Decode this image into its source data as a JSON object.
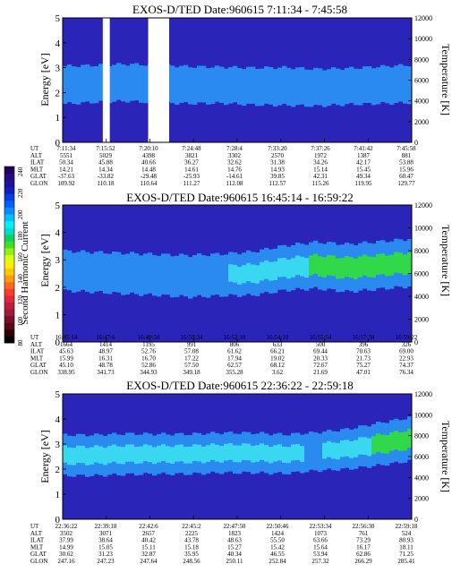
{
  "figure": {
    "colorbar": {
      "label": "Second Harmonic Current",
      "ticks": [
        "240",
        "220",
        "200",
        "180",
        "160",
        "140",
        "120",
        "100",
        "80"
      ],
      "colors": [
        "#000000",
        "#330000",
        "#5a0a14",
        "#7a0f2a",
        "#a01a3a",
        "#c01e3c",
        "#e0283c",
        "#ff3a2a",
        "#ff6a1a",
        "#ff9a10",
        "#ffc800",
        "#ffee00",
        "#d8ff10",
        "#90f010",
        "#40e020",
        "#10d060",
        "#00e0c8",
        "#00f0ff",
        "#00c0ff",
        "#0090ff",
        "#0060ff",
        "#0040e0",
        "#1020c0",
        "#2010a0",
        "#2a0a80",
        "#200060"
      ]
    },
    "colors": {
      "background": "#2b24b8",
      "band_blue": "#2a8af0",
      "band_cyan": "#3ad8f0",
      "band_green": "#30d84a",
      "gap": "#ffffff"
    }
  },
  "chart_data": [
    {
      "type": "heatmap",
      "title": "EXOS-D/TED   Date:960615  7:11:34 - 7:45:58",
      "ylabel": "Energy [eV]",
      "ylabel_right": "Temperature [K]",
      "ylim": [
        0,
        5
      ],
      "yticks": [
        "0",
        "1",
        "2",
        "3",
        "4",
        "5"
      ],
      "ylim_right": [
        0,
        12000
      ],
      "yticks_right": [
        "0",
        "2000",
        "4000",
        "6000",
        "8000",
        "10000",
        "12000"
      ],
      "data_gaps": [
        [
          0.115,
          0.135
        ],
        [
          0.245,
          0.305
        ]
      ],
      "band_profile": [
        2.3,
        2.35,
        2.4,
        2.35,
        2.3,
        2.3,
        2.25,
        2.25,
        2.2,
        2.25,
        2.3,
        2.35
      ],
      "band_intensity": [
        0.6,
        0.55,
        0.55,
        0.6,
        0.55,
        0.5,
        0.55,
        0.6,
        0.55,
        0.5,
        0.55,
        0.6
      ],
      "table": {
        "labels": [
          "UT",
          "ALT",
          "ILAT",
          "MLT",
          "GLAT",
          "GLON"
        ],
        "columns": [
          [
            "7:11:34",
            "5551",
            "50.34",
            "14.21",
            "-37.63",
            "109.92"
          ],
          [
            "7:15:52",
            "5029",
            "45.88",
            "14.34",
            "-33.82",
            "110.18"
          ],
          [
            "7:20:10",
            "4398",
            "40.66",
            "14.48",
            "-29.48",
            "110.64"
          ],
          [
            "7:24:48",
            "3821",
            "36.27",
            "14.61",
            "-25.93",
            "111.27"
          ],
          [
            "7:28:4",
            "3302",
            "32.62",
            "14.76",
            "-14.61",
            "112.08"
          ],
          [
            "7:33:20",
            "2570",
            "31.38",
            "14.93",
            "39.85",
            "112.57"
          ],
          [
            "7:37:26",
            "1972",
            "34.26",
            "15.14",
            "42.31",
            "115.26"
          ],
          [
            "7:41:42",
            "1387",
            "42.17",
            "15.45",
            "49.34",
            "119.95"
          ],
          [
            "7:45:58",
            "881",
            "53.88",
            "15.96",
            "60.47",
            "129.77"
          ]
        ]
      }
    },
    {
      "type": "heatmap",
      "title": "EXOS-D/TED   Date:960615  16:45:14 - 16:59:22",
      "ylabel": "Energy [eV]",
      "ylabel_right": "Temperature [K]",
      "ylim": [
        0,
        5
      ],
      "yticks": [
        "0",
        "1",
        "2",
        "3",
        "4",
        "5"
      ],
      "ylim_right": [
        0,
        12000
      ],
      "yticks_right": [
        "0",
        "2000",
        "4000",
        "6000",
        "8000",
        "10000",
        "12000"
      ],
      "data_gaps": [],
      "band_profile": [
        2.6,
        2.55,
        2.5,
        2.45,
        2.4,
        2.45,
        2.5,
        2.7,
        2.8,
        2.7,
        2.8,
        2.9
      ],
      "band_intensity": [
        0.5,
        0.5,
        0.55,
        0.55,
        0.6,
        0.6,
        0.7,
        0.75,
        0.85,
        0.9,
        0.9,
        0.9
      ],
      "table": {
        "labels": [
          "UT",
          "ALT",
          "ILAT",
          "MLT",
          "GLAT",
          "GLON"
        ],
        "columns": [
          [
            "16:45:14",
            "1664",
            "45.63",
            "15.99",
            "45.10",
            "338.95"
          ],
          [
            "16:47:6",
            "1414",
            "48.97",
            "16.31",
            "48.78",
            "341.73"
          ],
          [
            "16:48:50",
            "1195",
            "52.76",
            "16.70",
            "52.86",
            "344.93"
          ],
          [
            "16:50:34",
            "991",
            "57.08",
            "17.22",
            "57.50",
            "349.18"
          ],
          [
            "16:52:18",
            "806",
            "61.62",
            "17.94",
            "62.57",
            "355.28"
          ],
          [
            "16:54:10",
            "633",
            "66.21",
            "19.02",
            "68.12",
            "3.62"
          ],
          [
            "16:55:54",
            "500",
            "69.44",
            "20.33",
            "72.67",
            "21.69"
          ],
          [
            "16:57:38",
            "396",
            "70.63",
            "21.73",
            "75.27",
            "47.01"
          ],
          [
            "16:59:22",
            "326",
            "69.00",
            "22.93",
            "74.37",
            "76.34"
          ]
        ]
      }
    },
    {
      "type": "heatmap",
      "title": "EXOS-D/TED   Date:960615  22:36:22 - 22:59:18",
      "ylabel": "Energy [eV]",
      "ylabel_right": "Temperature [K]",
      "ylim": [
        0,
        5
      ],
      "yticks": [
        "0",
        "1",
        "2",
        "3",
        "4",
        "5"
      ],
      "ylim_right": [
        0,
        12000
      ],
      "yticks_right": [
        "0",
        "2000",
        "4000",
        "6000",
        "8000",
        "10000",
        "12000"
      ],
      "data_gaps": [],
      "band_profile": [
        2.55,
        2.55,
        2.6,
        2.6,
        2.6,
        2.65,
        2.65,
        2.6,
        2.7,
        2.8,
        3.0,
        3.2
      ],
      "band_intensity": [
        0.75,
        0.75,
        0.75,
        0.7,
        0.7,
        0.7,
        0.7,
        0.65,
        0.6,
        0.7,
        0.85,
        0.9
      ],
      "table": {
        "labels": [
          "UT",
          "ALT",
          "ILAT",
          "MLT",
          "GLAT",
          "GLON"
        ],
        "columns": [
          [
            "22:36:22",
            "3502",
            "37.99",
            "14.99",
            "30.62",
            "247.16"
          ],
          [
            "22:39:18",
            "3071",
            "38.64",
            "15.05",
            "31.23",
            "247.23"
          ],
          [
            "22:42:6",
            "2657",
            "40.42",
            "15.11",
            "32.87",
            "247.64"
          ],
          [
            "22:45:2",
            "2225",
            "43.78",
            "15.18",
            "35.95",
            "248.56"
          ],
          [
            "22:47:50",
            "1823",
            "48.63",
            "15.27",
            "40.34",
            "250.11"
          ],
          [
            "22:50:46",
            "1424",
            "55.50",
            "15.42",
            "46.55",
            "252.84"
          ],
          [
            "22:53:34",
            "1073",
            "63.66",
            "15.64",
            "53.94",
            "257.32"
          ],
          [
            "22:56:30",
            "761",
            "73.29",
            "16.17",
            "62.86",
            "266.29"
          ],
          [
            "22:59:18",
            "524",
            "80.93",
            "18.11",
            "71.25",
            "285.41"
          ]
        ]
      }
    }
  ]
}
